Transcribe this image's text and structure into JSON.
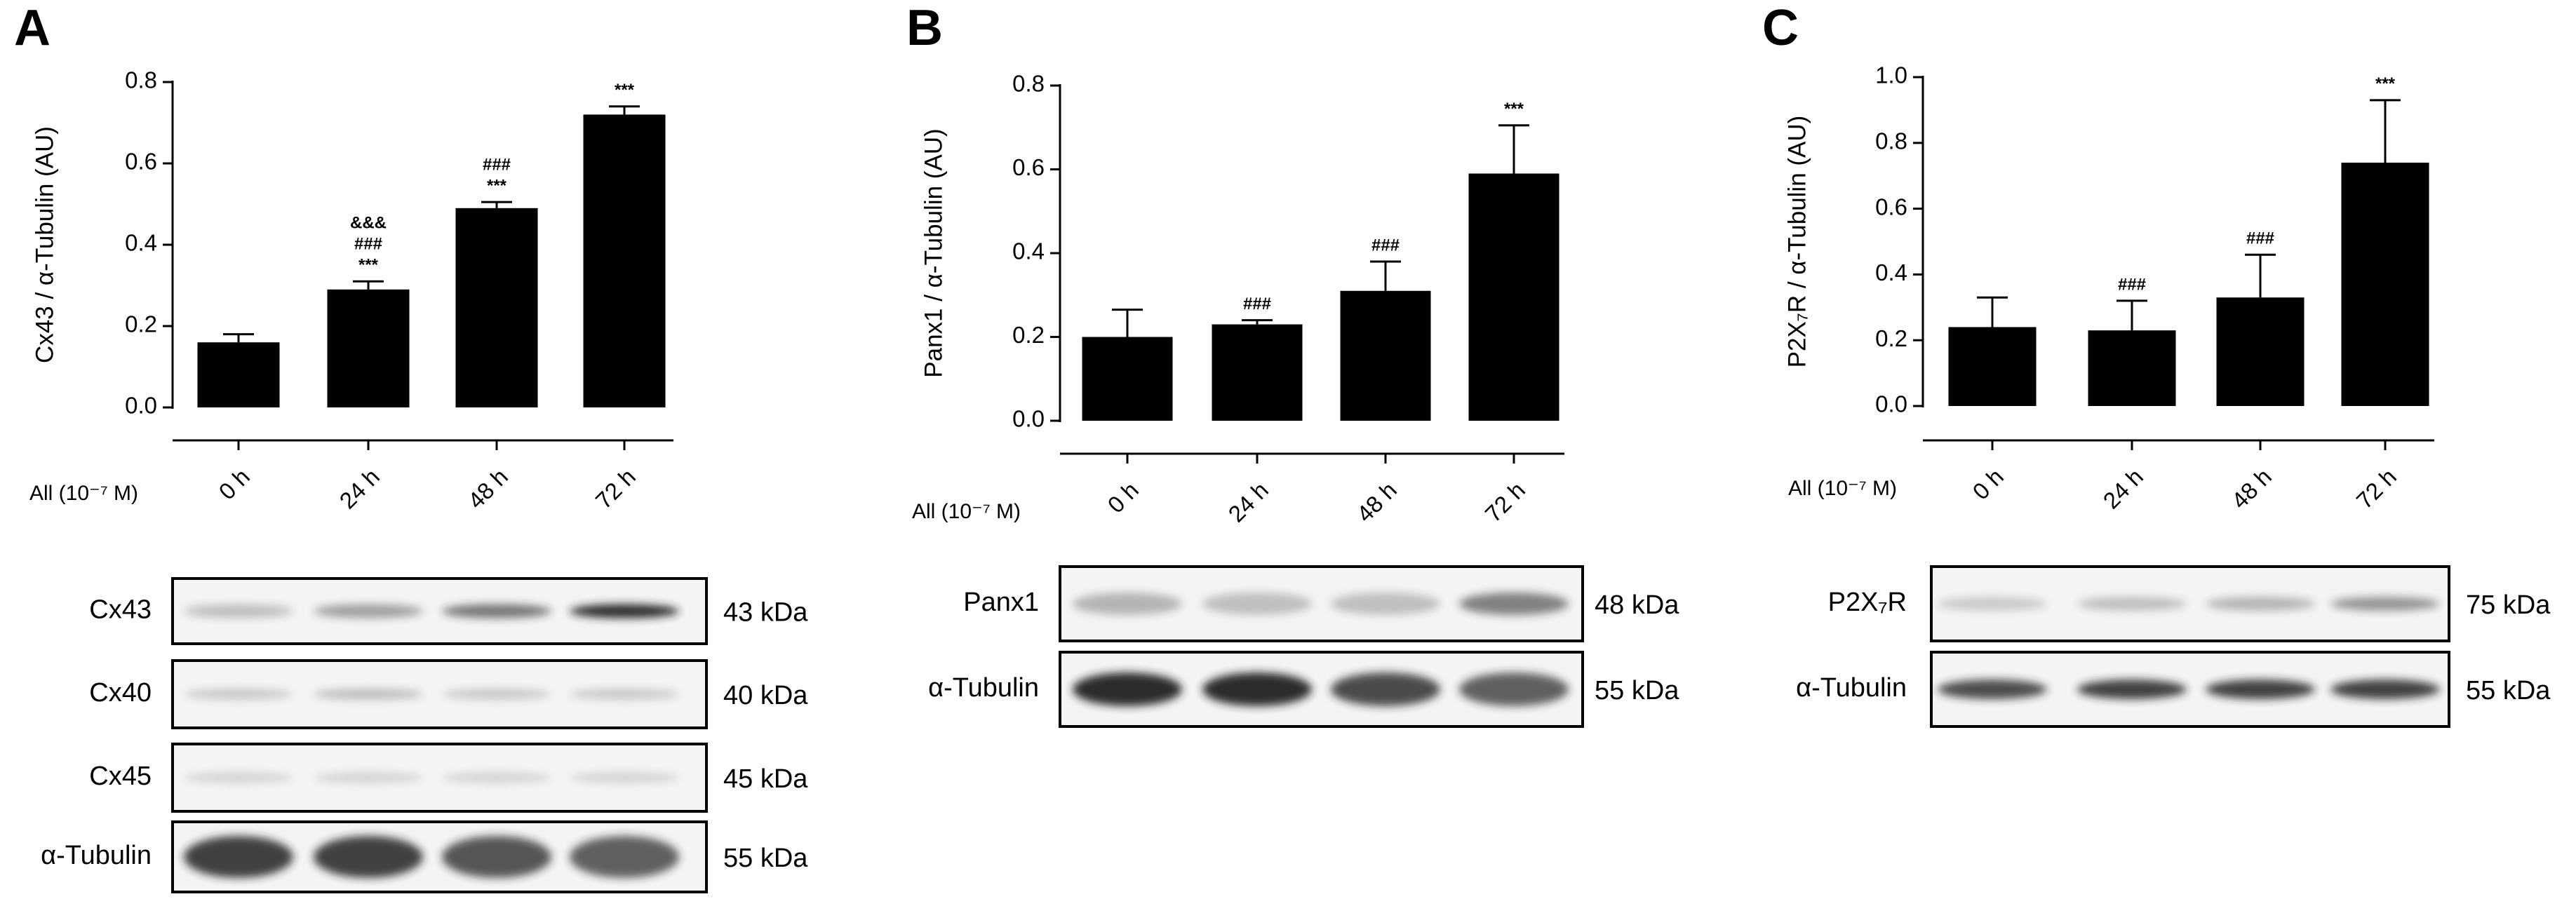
{
  "chart_data": [
    {
      "type": "bar",
      "panel": "A",
      "y_label": "Cx43 / α-Tubulin (AU)",
      "x_prefix": "All (10⁻⁷ M)",
      "categories": [
        "0 h",
        "24 h",
        "48 h",
        "72 h"
      ],
      "values": [
        0.16,
        0.29,
        0.49,
        0.72
      ],
      "errors": [
        0.02,
        0.02,
        0.015,
        0.02
      ],
      "annotations": [
        [],
        [
          "&&&",
          "###",
          "***"
        ],
        [
          "###",
          "***"
        ],
        [
          "***"
        ]
      ],
      "color": "#000000",
      "ylim": [
        0,
        0.8
      ],
      "yticks": [
        {
          "value": 0,
          "label": "0.0"
        },
        {
          "value": 0.2,
          "label": "0.2"
        },
        {
          "value": 0.4,
          "label": "0.4"
        },
        {
          "value": 0.6,
          "label": "0.6"
        },
        {
          "value": 0.8,
          "label": "0.8"
        }
      ],
      "blots": [
        {
          "label": "Cx43",
          "size": "43 kDa"
        },
        {
          "label": "Cx40",
          "size": "40 kDa"
        },
        {
          "label": "Cx45",
          "size": "45 kDa"
        },
        {
          "label": "α-Tubulin",
          "size": "55 kDa"
        }
      ]
    },
    {
      "type": "bar",
      "panel": "B",
      "y_label": "Panx1 / α-Tubulin (AU)",
      "x_prefix": "All (10⁻⁷ M)",
      "categories": [
        "0 h",
        "24 h",
        "48 h",
        "72 h"
      ],
      "values": [
        0.2,
        0.23,
        0.31,
        0.59
      ],
      "errors": [
        0.065,
        0.01,
        0.07,
        0.115
      ],
      "annotations": [
        [],
        [
          "###"
        ],
        [
          "###"
        ],
        [
          "***"
        ]
      ],
      "color": "#000000",
      "ylim": [
        0,
        0.8
      ],
      "yticks": [
        {
          "value": 0,
          "label": "0.0"
        },
        {
          "value": 0.2,
          "label": "0.2"
        },
        {
          "value": 0.4,
          "label": "0.4"
        },
        {
          "value": 0.6,
          "label": "0.6"
        },
        {
          "value": 0.8,
          "label": "0.8"
        }
      ],
      "blots": [
        {
          "label": "Panx1",
          "size": "48 kDa"
        },
        {
          "label": "α-Tubulin",
          "size": "55 kDa"
        }
      ]
    },
    {
      "type": "bar",
      "panel": "C",
      "y_label": "P2X₇R / α-Tubulin (AU)",
      "x_prefix": "All (10⁻⁷ M)",
      "categories": [
        "0 h",
        "24 h",
        "48 h",
        "72 h"
      ],
      "values": [
        0.24,
        0.23,
        0.33,
        0.74
      ],
      "errors": [
        0.09,
        0.09,
        0.13,
        0.19
      ],
      "annotations": [
        [],
        [
          "###"
        ],
        [
          "###"
        ],
        [
          "***"
        ]
      ],
      "color": "#000000",
      "ylim": [
        0,
        1
      ],
      "yticks": [
        {
          "value": 0,
          "label": "0.0"
        },
        {
          "value": 0.2,
          "label": "0.2"
        },
        {
          "value": 0.4,
          "label": "0.4"
        },
        {
          "value": 0.6,
          "label": "0.6"
        },
        {
          "value": 0.8,
          "label": "0.8"
        },
        {
          "value": 1,
          "label": "1.0"
        }
      ],
      "blots": [
        {
          "label": "P2X₇R",
          "size": "75 kDa"
        },
        {
          "label": "α-Tubulin",
          "size": "55 kDa"
        }
      ]
    }
  ]
}
